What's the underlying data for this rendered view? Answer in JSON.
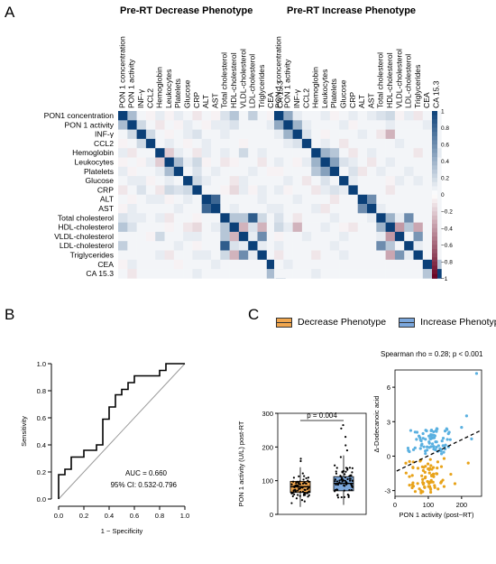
{
  "panels": {
    "a": "A",
    "b": "B",
    "c": "C"
  },
  "chart_data": [
    {
      "type": "heatmap",
      "title": "Pre-RT Decrease  Phenotype",
      "labels": [
        "PON1 concentration",
        "PON 1 activity",
        "INF-γ",
        "CCL2",
        "Hemoglobin",
        "Leukocytes",
        "Platelets",
        "Glucose",
        "CRP",
        "ALT",
        "AST",
        "Total cholesterol",
        "HDL-cholesterol",
        "VLDL-cholesterol",
        "LDL-cholesterol",
        "Triglycerides",
        "CEA",
        "CA 15.3"
      ],
      "column_labels": [
        "PON 1 concentration",
        "PON 1 activity",
        "INF-γ",
        "CCL2",
        "Hemoglobin",
        "Leukocytes",
        "Platelets",
        "Glucose",
        "CRP",
        "ALT",
        "AST",
        "Total cholesterol",
        "HDL-cholesterol",
        "VLDL-cholesterol",
        "LDL-cholesterol",
        "Triglycerides",
        "CEA",
        "CA 15.3"
      ],
      "values": [
        [
          1,
          0.35,
          0.05,
          -0.05,
          0.1,
          -0.05,
          0.1,
          0.05,
          -0.1,
          0.05,
          -0.05,
          0.15,
          0.3,
          0.05,
          0.25,
          0.05,
          -0.05,
          0.05
        ],
        [
          0.35,
          1,
          0.2,
          0.05,
          -0.1,
          0.05,
          -0.05,
          0.1,
          0.05,
          -0.05,
          0.1,
          0.1,
          0.15,
          0.05,
          0.05,
          0.05,
          0.1,
          -0.1
        ],
        [
          0.05,
          0.2,
          1,
          0.2,
          0.05,
          -0.05,
          0.05,
          0.1,
          0.15,
          0.05,
          0.05,
          0.1,
          0.05,
          0.05,
          0.05,
          0.05,
          0.05,
          0.05
        ],
        [
          -0.05,
          0.05,
          0.2,
          1,
          0.05,
          0.1,
          0.05,
          -0.05,
          0.05,
          0.1,
          0.05,
          0.05,
          0.05,
          -0.05,
          0.05,
          0.05,
          0.05,
          0.05
        ],
        [
          0.1,
          -0.1,
          0.05,
          0.05,
          1,
          -0.2,
          0.1,
          0.05,
          -0.1,
          0.1,
          0.05,
          0.1,
          0.05,
          0.2,
          0.05,
          0.1,
          0.05,
          0.05
        ],
        [
          -0.05,
          0.05,
          -0.05,
          0.1,
          -0.2,
          1,
          0.35,
          0.1,
          0.2,
          -0.05,
          0.05,
          -0.1,
          -0.05,
          0.05,
          0.05,
          -0.1,
          0.05,
          0.05
        ],
        [
          0.1,
          -0.05,
          0.05,
          0.05,
          0.1,
          0.35,
          1,
          0.05,
          0.15,
          0.05,
          0.1,
          0.05,
          0.05,
          0.05,
          0.1,
          0.05,
          -0.05,
          0.05
        ],
        [
          0.05,
          0.1,
          0.1,
          -0.05,
          0.05,
          0.1,
          0.05,
          1,
          0.2,
          0.1,
          0.05,
          0.05,
          -0.1,
          0.1,
          0.05,
          0.05,
          0.05,
          0.05
        ],
        [
          -0.1,
          0.05,
          0.15,
          0.05,
          -0.1,
          0.2,
          0.15,
          0.2,
          1,
          0.05,
          0.05,
          -0.05,
          -0.15,
          0.1,
          -0.05,
          0.1,
          0.05,
          0.1
        ],
        [
          0.05,
          -0.05,
          0.05,
          0.1,
          0.1,
          -0.05,
          0.05,
          0.1,
          0.05,
          1,
          0.8,
          0.05,
          0.05,
          0.05,
          0.05,
          0.1,
          0.05,
          0.05
        ],
        [
          -0.05,
          0.1,
          0.05,
          0.05,
          0.05,
          0.05,
          0.1,
          0.05,
          0.05,
          0.8,
          1,
          0.05,
          0.1,
          0.05,
          0.05,
          0.05,
          0.1,
          0.05
        ],
        [
          0.15,
          0.1,
          0.1,
          0.05,
          0.1,
          -0.1,
          0.05,
          0.05,
          -0.05,
          0.05,
          0.05,
          1,
          0.3,
          0.3,
          0.85,
          0.2,
          0.05,
          0.05
        ],
        [
          0.3,
          0.15,
          0.05,
          0.05,
          0.05,
          -0.05,
          0.05,
          -0.1,
          -0.15,
          0.05,
          0.1,
          0.3,
          1,
          -0.3,
          0.15,
          -0.3,
          0.05,
          0.05
        ],
        [
          0.05,
          0.05,
          0.05,
          -0.05,
          0.2,
          0.05,
          0.05,
          0.1,
          0.1,
          0.05,
          0.05,
          0.3,
          -0.3,
          1,
          0.1,
          0.6,
          0.05,
          0.05
        ],
        [
          0.25,
          0.05,
          0.05,
          0.05,
          0.05,
          0.05,
          0.1,
          0.05,
          -0.05,
          0.05,
          0.05,
          0.85,
          0.15,
          0.1,
          1,
          0.1,
          0.05,
          0.05
        ],
        [
          0.05,
          0.05,
          0.05,
          0.05,
          0.1,
          -0.1,
          0.05,
          0.05,
          0.1,
          0.1,
          0.05,
          0.2,
          -0.3,
          0.6,
          0.1,
          1,
          0.05,
          0.05
        ],
        [
          -0.05,
          0.1,
          0.05,
          0.05,
          0.05,
          0.05,
          -0.05,
          0.05,
          0.05,
          0.05,
          0.1,
          0.05,
          0.05,
          0.05,
          0.05,
          0.05,
          1,
          0.35
        ],
        [
          0.05,
          -0.1,
          0.05,
          0.05,
          0.05,
          0.05,
          0.05,
          0.05,
          0.1,
          0.05,
          0.05,
          0.05,
          0.05,
          0.05,
          0.05,
          0.05,
          0.35,
          1
        ]
      ]
    },
    {
      "type": "heatmap",
      "title": "Pre-RT Increase Phenotype",
      "column_labels": [
        "PON 1 concentration",
        "PON 1 activity",
        "INF-γ",
        "CCL2",
        "Hemoglobin",
        "Leukocytes",
        "Platelets",
        "Glucose",
        "CRP",
        "ALT",
        "AST",
        "Total cholesterol",
        "HDL-cholesterol",
        "VLDL-cholesterol",
        "LDL-cholesterol",
        "Triglycerides",
        "CEA",
        "CA 15.3"
      ],
      "values": [
        [
          1,
          0.45,
          0.1,
          0.05,
          0.05,
          0.1,
          -0.05,
          0.05,
          0.1,
          0.05,
          0.1,
          0.15,
          0.2,
          -0.05,
          0.1,
          -0.1,
          0.05,
          0.05
        ],
        [
          0.45,
          1,
          0.4,
          0.1,
          0.05,
          0.05,
          0.05,
          0.1,
          -0.05,
          0.05,
          0.05,
          0.05,
          0.1,
          0.05,
          0.05,
          0.05,
          0.1,
          0.05
        ],
        [
          0.1,
          0.4,
          1,
          0.15,
          0.05,
          -0.05,
          0.05,
          0.05,
          0.05,
          0.1,
          0.05,
          -0.1,
          -0.3,
          0.05,
          0.05,
          0.05,
          0.05,
          0.05
        ],
        [
          0.05,
          0.1,
          0.15,
          1,
          0.05,
          0.1,
          0.05,
          -0.1,
          0.05,
          0.05,
          0.05,
          0.05,
          0.05,
          0.1,
          0.05,
          0.05,
          0.05,
          0.05
        ],
        [
          0.05,
          0.05,
          0.05,
          0.05,
          1,
          0.4,
          0.3,
          0.05,
          -0.1,
          0.05,
          0.1,
          0.05,
          0.05,
          0.05,
          0.05,
          -0.1,
          0.05,
          0.1
        ],
        [
          0.1,
          0.05,
          -0.05,
          0.1,
          0.4,
          1,
          0.5,
          0.15,
          0.1,
          0.05,
          -0.1,
          0.05,
          0.1,
          0.05,
          0.05,
          0.05,
          0.05,
          0.05
        ],
        [
          -0.05,
          0.05,
          0.05,
          0.05,
          0.3,
          0.5,
          1,
          0.05,
          0.15,
          -0.1,
          0.05,
          0.1,
          0.05,
          0.05,
          0.1,
          0.05,
          0.05,
          0.05
        ],
        [
          0.05,
          0.1,
          0.05,
          -0.1,
          0.05,
          0.15,
          0.05,
          1,
          0.1,
          0.05,
          0.05,
          0.05,
          -0.05,
          0.1,
          0.05,
          0.1,
          0.05,
          0.05
        ],
        [
          0.1,
          -0.05,
          0.05,
          0.05,
          -0.1,
          0.1,
          0.15,
          0.1,
          1,
          0.05,
          0.05,
          0.05,
          -0.1,
          0.05,
          0.05,
          0.05,
          0.05,
          0.05
        ],
        [
          0.05,
          0.05,
          0.1,
          0.05,
          0.05,
          0.05,
          -0.1,
          0.05,
          0.05,
          1,
          0.6,
          0.05,
          0.05,
          0.05,
          0.05,
          0.05,
          0.05,
          0.05
        ],
        [
          0.1,
          0.05,
          0.05,
          0.05,
          0.1,
          -0.1,
          0.05,
          0.05,
          0.05,
          0.6,
          1,
          0.1,
          0.05,
          0.05,
          0.05,
          0.05,
          0.05,
          0.05
        ],
        [
          0.15,
          0.05,
          -0.1,
          0.05,
          0.05,
          0.05,
          0.1,
          0.05,
          0.05,
          0.05,
          0.1,
          1,
          0.4,
          0.1,
          0.6,
          0.05,
          0.05,
          0.05
        ],
        [
          0.2,
          0.1,
          -0.3,
          0.05,
          0.05,
          0.1,
          0.05,
          -0.05,
          -0.1,
          0.05,
          0.05,
          0.4,
          1,
          -0.4,
          0.3,
          -0.35,
          0.05,
          0.05
        ],
        [
          -0.05,
          0.05,
          0.05,
          0.1,
          0.05,
          0.05,
          0.05,
          0.1,
          0.05,
          0.05,
          0.05,
          0.1,
          -0.4,
          1,
          0.05,
          0.55,
          0.05,
          0.05
        ],
        [
          0.1,
          0.05,
          0.05,
          0.05,
          0.05,
          0.05,
          0.1,
          0.05,
          0.05,
          0.05,
          0.05,
          0.6,
          0.3,
          0.05,
          1,
          0.1,
          0.05,
          0.05
        ],
        [
          -0.1,
          0.05,
          0.05,
          0.05,
          -0.1,
          0.05,
          0.05,
          0.1,
          0.05,
          0.05,
          0.05,
          0.05,
          -0.35,
          0.55,
          0.1,
          1,
          0.05,
          0.05
        ],
        [
          0.05,
          0.1,
          0.05,
          0.05,
          0.05,
          0.05,
          0.05,
          0.05,
          0.05,
          0.05,
          0.05,
          0.05,
          0.05,
          0.05,
          0.05,
          0.05,
          1,
          0.3
        ],
        [
          0.05,
          0.05,
          0.05,
          0.05,
          0.1,
          0.05,
          0.05,
          0.05,
          0.05,
          0.05,
          0.05,
          0.05,
          0.05,
          0.05,
          0.05,
          0.05,
          0.3,
          1
        ]
      ],
      "colorbar": {
        "ticks": [
          "1",
          "0.8",
          "0.6",
          "0.4",
          "0.2",
          "0",
          "−0.2",
          "−0.4",
          "−0.6",
          "−0.8",
          "−1"
        ],
        "range": [
          -1,
          1
        ]
      }
    },
    {
      "type": "line",
      "xlabel": "1 − Specificity",
      "ylabel": "Sensitivity",
      "xlim": [
        0,
        1
      ],
      "ylim": [
        0,
        1
      ],
      "xticks": [
        "0.0",
        "0.2",
        "0.4",
        "0.6",
        "0.8",
        "1.0"
      ],
      "yticks": [
        "0.0",
        "0.2",
        "0.4",
        "0.6",
        "0.8",
        "1.0"
      ],
      "x": [
        0,
        0,
        0.05,
        0.05,
        0.1,
        0.1,
        0.2,
        0.2,
        0.3,
        0.3,
        0.35,
        0.35,
        0.4,
        0.4,
        0.45,
        0.45,
        0.5,
        0.5,
        0.55,
        0.55,
        0.6,
        0.6,
        0.8,
        0.8,
        0.85,
        0.85,
        1
      ],
      "y": [
        0,
        0.18,
        0.18,
        0.22,
        0.22,
        0.31,
        0.31,
        0.36,
        0.36,
        0.4,
        0.4,
        0.59,
        0.59,
        0.68,
        0.68,
        0.77,
        0.77,
        0.81,
        0.81,
        0.86,
        0.86,
        0.91,
        0.91,
        0.95,
        0.95,
        1,
        1
      ],
      "annotations": [
        "AUC = 0.660",
        "95% CI: 0.532-0.796"
      ]
    },
    {
      "type": "box",
      "legend": [
        "Decrease Phenotype",
        "Increase Phenotype"
      ],
      "colors": {
        "decrease": "#f0a64e",
        "increase": "#7ba7dc"
      },
      "ylabel": "PON 1 activity (U/L) post-RT",
      "ylim": [
        0,
        300
      ],
      "yticks": [
        "0",
        "100",
        "200",
        "300"
      ],
      "annotation": "p = 0.004",
      "series": [
        {
          "name": "Decrease Phenotype",
          "q1": 65,
          "median": 82,
          "q3": 98,
          "whisker_low": 22,
          "whisker_high": 140,
          "outliers": [
            158,
            165
          ]
        },
        {
          "name": "Increase Phenotype",
          "q1": 70,
          "median": 92,
          "q3": 112,
          "whisker_low": 28,
          "whisker_high": 175,
          "outliers": [
            190,
            205,
            230,
            255,
            265
          ]
        }
      ]
    },
    {
      "type": "scatter",
      "title": "Spearman rho = 0.28; p < 0.001",
      "xlabel": "PON 1 activity (post−RT)",
      "ylabel": "Δ-Dodecanoic acid",
      "xlim": [
        0,
        260
      ],
      "ylim": [
        -3.5,
        7.5
      ],
      "xticks": [
        "0",
        "100",
        "200"
      ],
      "yticks": [
        "-3",
        "0",
        "3",
        "6"
      ]
    }
  ]
}
